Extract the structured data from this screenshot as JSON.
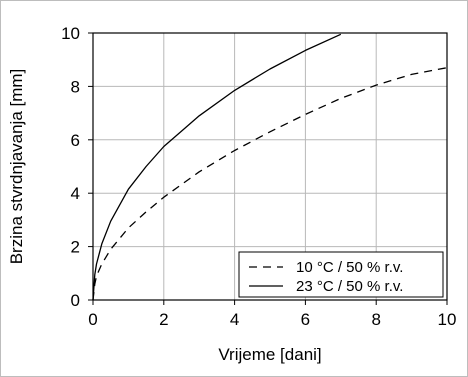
{
  "chart_data": {
    "type": "line",
    "title": "",
    "xlabel": "Vrijeme [dani]",
    "ylabel": "Brzina stvrdnjavanja [mm]",
    "xlim": [
      0,
      10
    ],
    "ylim": [
      0,
      10
    ],
    "xticks": [
      "0",
      "2",
      "4",
      "6",
      "8",
      "10"
    ],
    "yticks": [
      "0",
      "2",
      "4",
      "6",
      "8",
      "10"
    ],
    "grid": true,
    "legend_position": "bottom-right",
    "series": [
      {
        "name": "10 °C / 50 % r.v.",
        "style": "dashed",
        "color": "#000000",
        "x": [
          0,
          0.05,
          0.1,
          0.25,
          0.5,
          1,
          1.5,
          2,
          3,
          4,
          5,
          6,
          7,
          8,
          9,
          10
        ],
        "y": [
          0,
          0.6,
          0.9,
          1.35,
          1.9,
          2.7,
          3.3,
          3.85,
          4.8,
          5.6,
          6.3,
          6.95,
          7.55,
          8.05,
          8.45,
          8.7
        ]
      },
      {
        "name": "23 °C / 50 % r.v.",
        "style": "solid",
        "color": "#000000",
        "x": [
          0,
          0.05,
          0.1,
          0.25,
          0.5,
          1,
          1.5,
          2,
          3,
          4,
          5,
          6,
          7
        ],
        "y": [
          0,
          0.95,
          1.35,
          2.1,
          2.95,
          4.15,
          5.0,
          5.75,
          6.9,
          7.85,
          8.65,
          9.35,
          9.95
        ]
      }
    ]
  }
}
